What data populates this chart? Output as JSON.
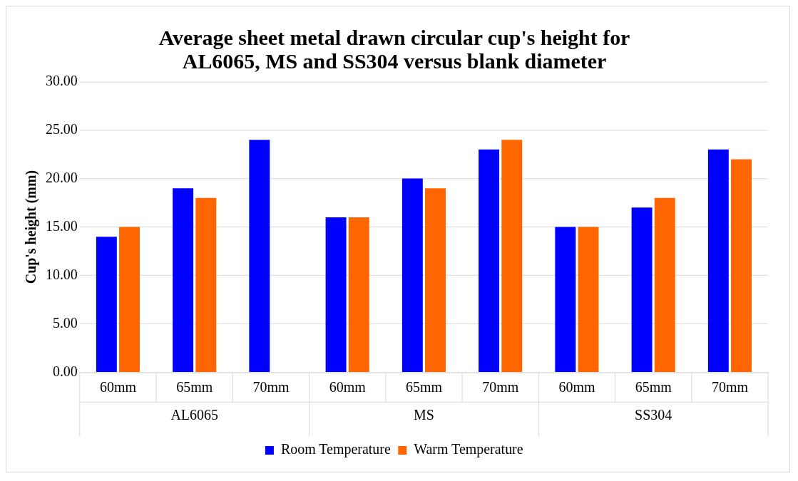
{
  "chart_data": {
    "type": "bar",
    "title": "Average sheet metal drawn circular cup's height for\nAL6065, MS and SS304 versus blank diameter",
    "ylabel": "Cup's height (mm)",
    "categories": [
      "60mm",
      "65mm",
      "70mm",
      "60mm",
      "65mm",
      "70mm",
      "60mm",
      "65mm",
      "70mm"
    ],
    "annotations": [
      "AL6065",
      "MS",
      "SS304"
    ],
    "series": [
      {
        "name": "Room Temperature",
        "color": "#0000ff",
        "values": [
          14,
          19,
          24,
          16,
          20,
          23,
          15,
          17,
          23
        ]
      },
      {
        "name": "Warm Temperature",
        "color": "#ff6600",
        "values": [
          15,
          18,
          null,
          16,
          19,
          24,
          15,
          18,
          22
        ]
      }
    ],
    "ylim": [
      0,
      30
    ],
    "yticks": [
      {
        "value": 0,
        "label": "0.00"
      },
      {
        "value": 5,
        "label": "5.00"
      },
      {
        "value": 10,
        "label": "10.00"
      },
      {
        "value": 15,
        "label": "15.00"
      },
      {
        "value": 20,
        "label": "20.00"
      },
      {
        "value": 25,
        "label": "25.00"
      },
      {
        "value": 30,
        "label": "30.00"
      }
    ],
    "grid": "y",
    "legend": "bottom"
  }
}
